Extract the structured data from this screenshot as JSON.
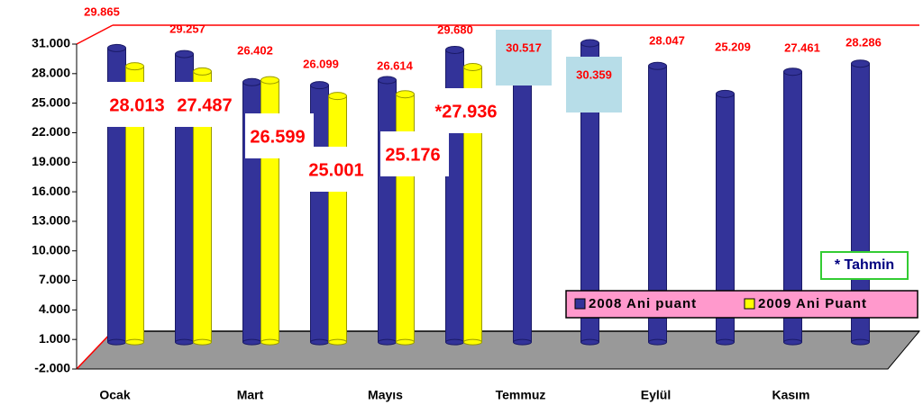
{
  "chart_data": {
    "type": "bar",
    "categories": [
      "Ocak",
      null,
      "Mart",
      null,
      "Mayıs",
      null,
      "Temmuz",
      null,
      "Eylül",
      null,
      "Kasım",
      null
    ],
    "series": [
      {
        "name": "2008 Ani puant",
        "color": "#333399",
        "values": [
          29865,
          29257,
          26402,
          26099,
          26614,
          29680,
          30517,
          30359,
          28047,
          25209,
          27461,
          28286
        ],
        "value_labels": [
          "29.865",
          "29.257",
          "26.402",
          "26.099",
          "26.614",
          "29.680",
          "30.517",
          "30.359",
          "28.047",
          "25.209",
          "27.461",
          "28.286"
        ]
      },
      {
        "name": "2009 Ani Puant",
        "color": "#ffff00",
        "values": [
          28013,
          27487,
          26599,
          25001,
          25176,
          27936,
          null,
          null,
          null,
          null,
          null,
          null
        ],
        "value_labels": [
          "28.013",
          "27.487",
          "26.599",
          "25.001",
          "25.176",
          "*27.936",
          null,
          null,
          null,
          null,
          null,
          null
        ]
      }
    ],
    "ylim": [
      -2000,
      31000
    ],
    "yticks": [
      {
        "value": -2000,
        "label": "-2.000"
      },
      {
        "value": 1000,
        "label": "1.000"
      },
      {
        "value": 4000,
        "label": "4.000"
      },
      {
        "value": 7000,
        "label": "7.000"
      },
      {
        "value": 10000,
        "label": "10.000"
      },
      {
        "value": 13000,
        "label": "13.000"
      },
      {
        "value": 16000,
        "label": "16.000"
      },
      {
        "value": 19000,
        "label": "19.000"
      },
      {
        "value": 22000,
        "label": "22.000"
      },
      {
        "value": 25000,
        "label": "25.000"
      },
      {
        "value": 28000,
        "label": "28.000"
      },
      {
        "value": 31000,
        "label": "31.000"
      }
    ],
    "annotation": "* Tahmin",
    "legend": "bottom-right"
  }
}
